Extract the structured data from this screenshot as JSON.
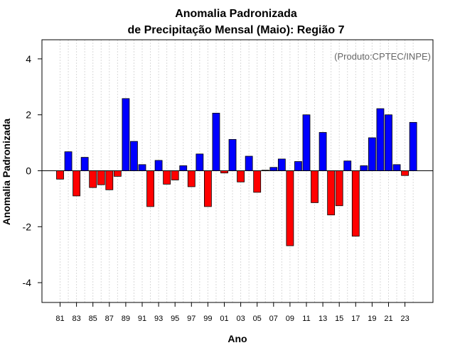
{
  "chart_data": {
    "type": "bar",
    "title_line1": "Anomalia Padronizada",
    "title_line2": "de Precipitação Mensal (Maio): Região 7",
    "xlabel": "Ano",
    "ylabel": "Anomalia Padronizada",
    "annotation": "(Produto:CPTEC/INPE)",
    "ylim": [
      -4.7,
      4.7
    ],
    "yticks": [
      "-4",
      "-2",
      "0",
      "2",
      "4"
    ],
    "ytick_values": [
      -4,
      -2,
      0,
      2,
      4
    ],
    "grid": true,
    "colors": {
      "positive": "#0000ff",
      "negative": "#ff0000",
      "zero_line": "#000000",
      "grid": "#d9d9d9"
    },
    "categories": [
      "1981",
      "1982",
      "1983",
      "1984",
      "1985",
      "1986",
      "1987",
      "1988",
      "1989",
      "1990",
      "1991",
      "1992",
      "1993",
      "1994",
      "1995",
      "1996",
      "1997",
      "1998",
      "1999",
      "2000",
      "2001",
      "2002",
      "2003",
      "2004",
      "2005",
      "2006",
      "2007",
      "2008",
      "2009",
      "2010",
      "2011",
      "2012",
      "2013",
      "2014",
      "2015",
      "2016",
      "2017",
      "2018",
      "2019",
      "2020",
      "2021",
      "2022",
      "2023",
      "2024"
    ],
    "values": [
      -0.3,
      0.68,
      -0.9,
      0.48,
      -0.6,
      -0.5,
      -0.68,
      -0.2,
      2.58,
      1.05,
      0.22,
      -1.28,
      0.37,
      -0.48,
      -0.33,
      0.18,
      -0.57,
      0.6,
      -1.28,
      2.06,
      -0.08,
      1.12,
      -0.4,
      0.52,
      -0.77,
      0.02,
      0.12,
      0.42,
      -2.68,
      0.33,
      2.0,
      -1.14,
      1.37,
      -1.58,
      -1.25,
      0.35,
      -2.34,
      0.18,
      1.18,
      2.22,
      2.0,
      0.22,
      -0.17,
      1.73
    ],
    "xtick_labels": [
      "81",
      "83",
      "85",
      "87",
      "89",
      "91",
      "93",
      "95",
      "97",
      "99",
      "01",
      "03",
      "05",
      "07",
      "09",
      "11",
      "13",
      "15",
      "17",
      "19",
      "21",
      "23"
    ],
    "xtick_positions": [
      1981,
      1983,
      1985,
      1987,
      1989,
      1991,
      1993,
      1995,
      1997,
      1999,
      2001,
      2003,
      2005,
      2007,
      2009,
      2011,
      2013,
      2015,
      2017,
      2019,
      2021,
      2023
    ]
  }
}
